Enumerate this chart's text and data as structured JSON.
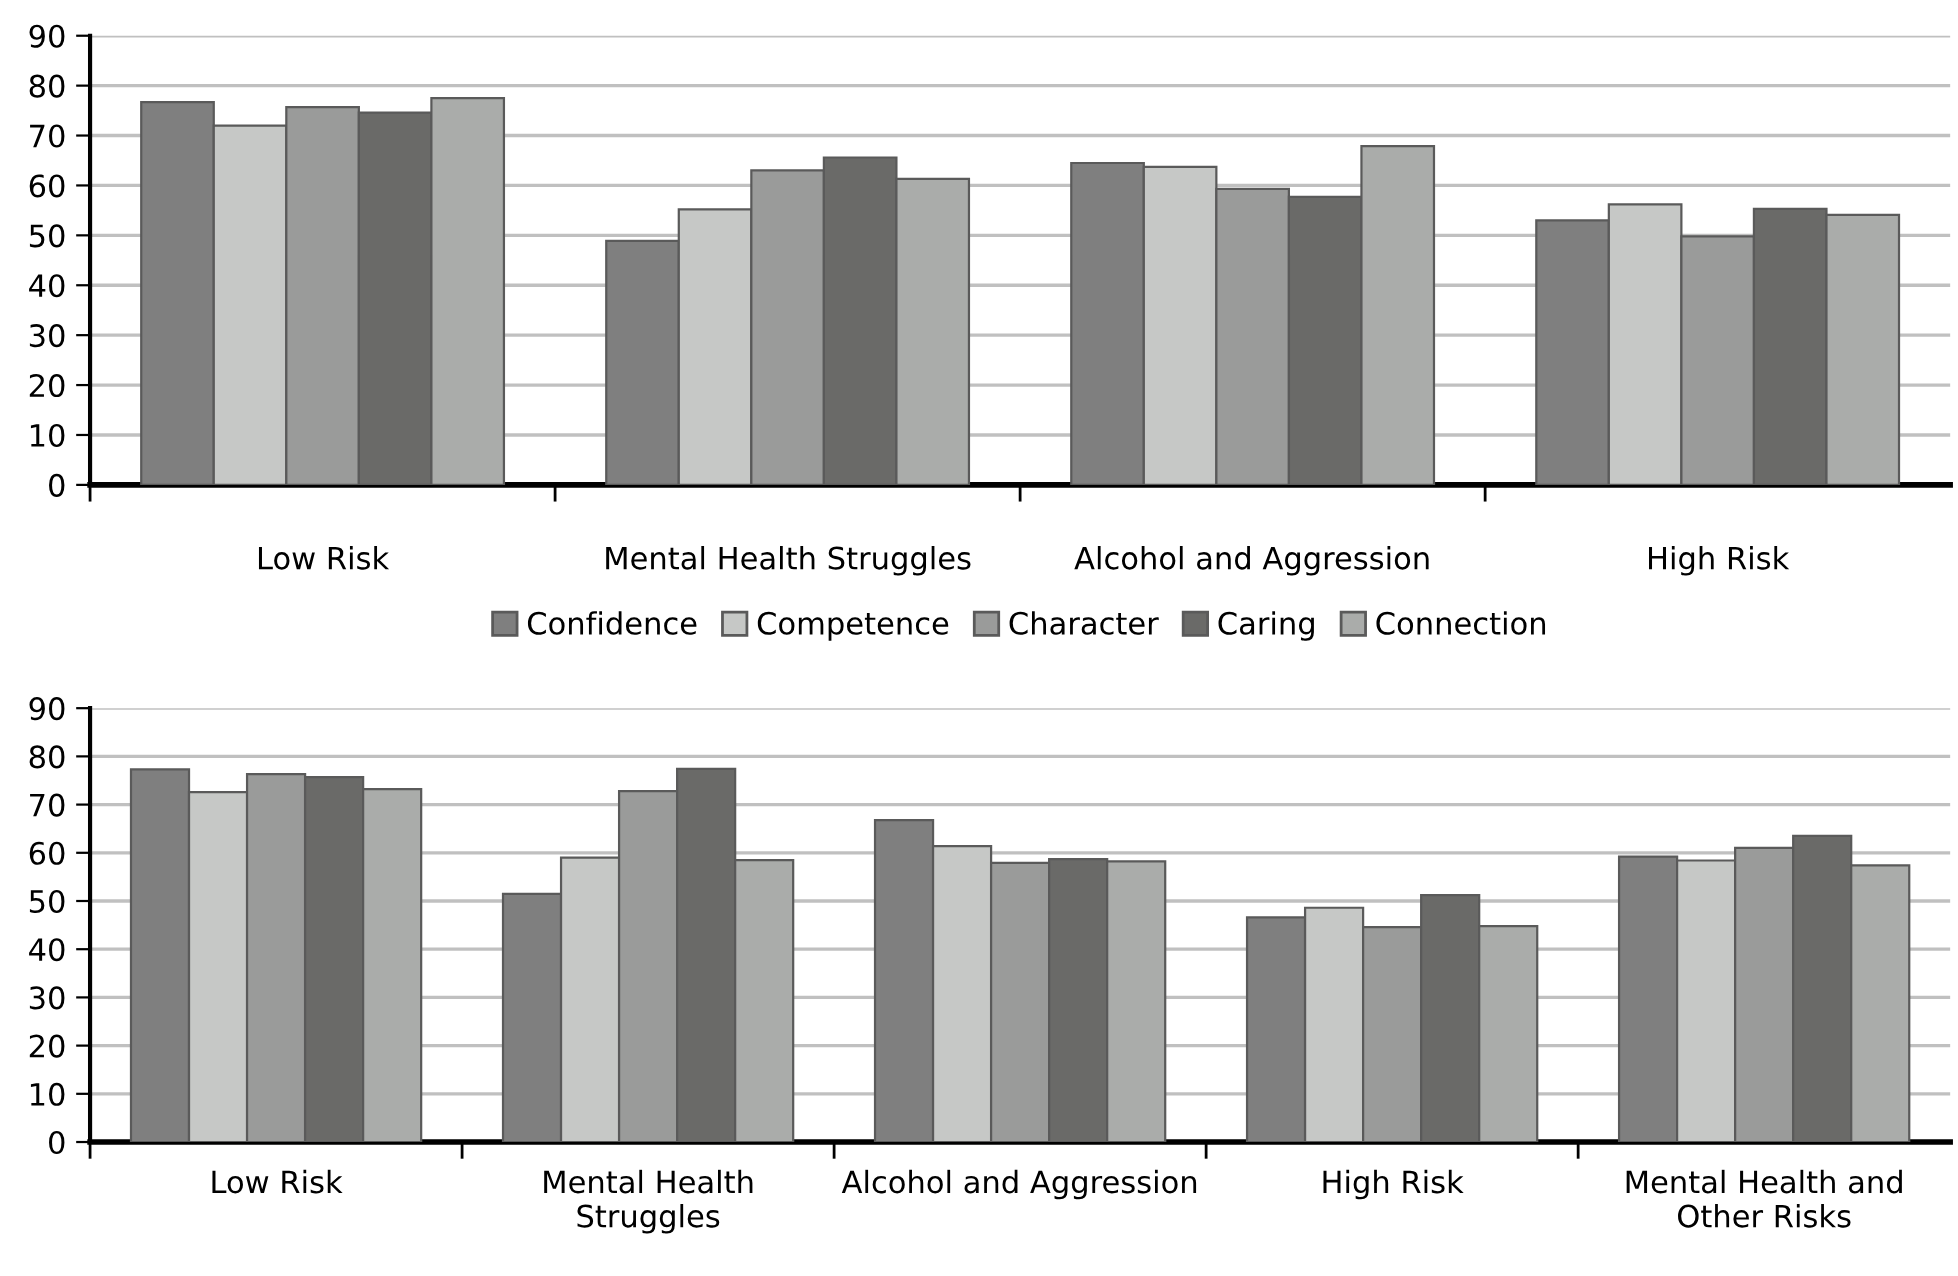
{
  "chart_data": [
    {
      "type": "bar",
      "categories": [
        "Low Risk",
        "Mental Health Struggles",
        "Alcohol and Aggression",
        "High Risk"
      ],
      "ylim": [
        0,
        90
      ],
      "yticks": [
        0,
        10,
        20,
        30,
        40,
        50,
        60,
        70,
        80,
        90
      ],
      "grid": "y",
      "legend": "bottom",
      "series": [
        {
          "name": "Confidence",
          "color": "#7f7f7f",
          "values": [
            76.7,
            48.9,
            64.5,
            53.0
          ]
        },
        {
          "name": "Competence",
          "color": "#c6c8c6",
          "values": [
            72.0,
            55.2,
            63.7,
            56.2
          ]
        },
        {
          "name": "Character",
          "color": "#9a9b9a",
          "values": [
            75.7,
            63.0,
            59.3,
            49.8
          ]
        },
        {
          "name": "Caring",
          "color": "#6a6a68",
          "values": [
            74.6,
            65.6,
            57.7,
            55.3
          ]
        },
        {
          "name": "Connection",
          "color": "#aaacaa",
          "values": [
            77.5,
            61.3,
            67.9,
            54.1
          ]
        }
      ]
    },
    {
      "type": "bar",
      "categories": [
        "Low Risk",
        "Mental Health\nStruggles",
        "Alcohol and Aggression",
        "High Risk",
        "Mental Health and\nOther Risks"
      ],
      "ylim": [
        0,
        90
      ],
      "yticks": [
        0,
        10,
        20,
        30,
        40,
        50,
        60,
        70,
        80,
        90
      ],
      "grid": "y",
      "series": [
        {
          "color": "#7f7f7f",
          "values": [
            77.3,
            51.5,
            66.8,
            46.6,
            59.2
          ]
        },
        {
          "color": "#c6c8c6",
          "values": [
            72.6,
            59.0,
            61.4,
            48.6,
            58.4
          ]
        },
        {
          "color": "#9a9b9a",
          "values": [
            76.3,
            72.8,
            57.9,
            44.6,
            61.0
          ]
        },
        {
          "color": "#6a6a68",
          "values": [
            75.7,
            77.4,
            58.7,
            51.2,
            63.5
          ]
        },
        {
          "color": "#aaacaa",
          "values": [
            73.2,
            58.5,
            58.2,
            44.8,
            57.4
          ]
        }
      ]
    }
  ]
}
